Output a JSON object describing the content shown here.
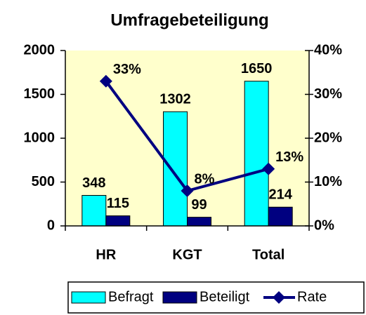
{
  "chart_data": {
    "type": "bar",
    "title": "Umfragebeteiligung",
    "categories": [
      "HR",
      "KGT",
      "Total"
    ],
    "series": [
      {
        "name": "Befragt",
        "type": "bar",
        "axis": "y",
        "color": "#00ffff",
        "values": [
          348,
          1302,
          1650
        ]
      },
      {
        "name": "Beteiligt",
        "type": "bar",
        "axis": "y",
        "color": "#000080",
        "values": [
          115,
          99,
          214
        ]
      },
      {
        "name": "Rate",
        "type": "line",
        "axis": "y2",
        "color": "#000080",
        "values": [
          33,
          8,
          13
        ],
        "value_labels": [
          "33%",
          "8%",
          "13%"
        ]
      }
    ],
    "ylim": [
      0,
      2000
    ],
    "yticks": [
      0,
      500,
      1000,
      1500,
      2000
    ],
    "y2lim": [
      0,
      40
    ],
    "y2ticks": [
      {
        "value": 0,
        "label": "0%"
      },
      {
        "value": 10,
        "label": "10%"
      },
      {
        "value": 20,
        "label": "20%"
      },
      {
        "value": 30,
        "label": "30%"
      },
      {
        "value": 40,
        "label": "40%"
      }
    ],
    "plot_color": "#ffffcc",
    "legend": "bottom"
  }
}
